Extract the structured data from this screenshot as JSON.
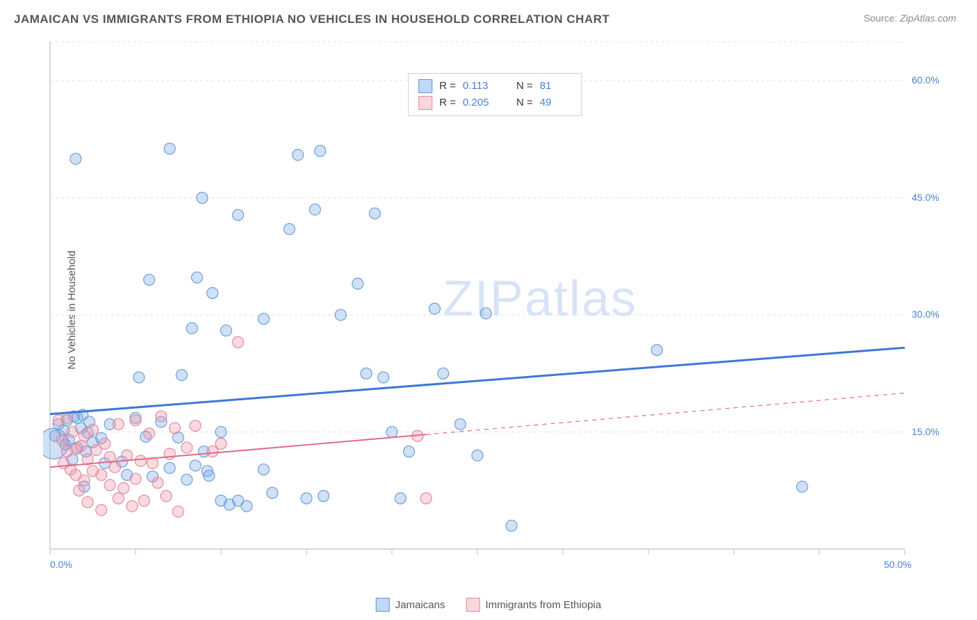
{
  "title": "JAMAICAN VS IMMIGRANTS FROM ETHIOPIA NO VEHICLES IN HOUSEHOLD CORRELATION CHART",
  "source_label": "Source:",
  "source_value": "ZipAtlas.com",
  "y_axis_label": "No Vehicles in Household",
  "watermark_zip": "ZIP",
  "watermark_atlas": "atlas",
  "chart": {
    "type": "scatter",
    "background_color": "#ffffff",
    "grid_color": "#e0e0e0",
    "grid_dash": "4,4",
    "axis_line_color": "#bfbfbf",
    "xlim": [
      0,
      50
    ],
    "ylim": [
      0,
      65
    ],
    "x_ticks": [
      0,
      5,
      10,
      15,
      20,
      25,
      30,
      35,
      40,
      45,
      50
    ],
    "x_tick_labels": {
      "0": "0.0%",
      "50": "50.0%"
    },
    "y_ticks": [
      15,
      30,
      45,
      60
    ],
    "y_tick_labels": {
      "15": "15.0%",
      "30": "30.0%",
      "45": "45.0%",
      "60": "60.0%"
    },
    "series": [
      {
        "name": "Jamaicans",
        "color_fill": "rgba(120,170,230,0.35)",
        "color_stroke": "#6b9fd8",
        "marker_r": 8,
        "R": "0.113",
        "N": "81",
        "trend": {
          "x1": 0,
          "y1": 17.3,
          "x2": 50,
          "y2": 25.8,
          "solid_until_x": 50,
          "color": "#3d78d6",
          "width": 3
        },
        "points": [
          [
            0.3,
            14.5
          ],
          [
            0.5,
            16
          ],
          [
            0.8,
            15.2
          ],
          [
            0.9,
            13.4
          ],
          [
            1.0,
            16.5
          ],
          [
            1.1,
            14.0
          ],
          [
            1.3,
            11.5
          ],
          [
            1.4,
            17.0
          ],
          [
            1.6,
            13.0
          ],
          [
            1.6,
            16.8
          ],
          [
            1.8,
            15.5
          ],
          [
            1.9,
            17.2
          ],
          [
            2.0,
            8.0
          ],
          [
            2.1,
            12.5
          ],
          [
            2.2,
            14.9
          ],
          [
            2.3,
            16.3
          ],
          [
            2.5,
            13.7
          ],
          [
            3.0,
            14.2
          ],
          [
            3.2,
            11.0
          ],
          [
            3.5,
            16.0
          ],
          [
            1.5,
            50.0
          ],
          [
            4.2,
            11.2
          ],
          [
            4.5,
            9.5
          ],
          [
            5.0,
            16.8
          ],
          [
            5.2,
            22.0
          ],
          [
            5.6,
            14.4
          ],
          [
            5.8,
            34.5
          ],
          [
            6.0,
            9.3
          ],
          [
            6.5,
            16.3
          ],
          [
            7.0,
            10.4
          ],
          [
            7.0,
            51.3
          ],
          [
            7.5,
            14.3
          ],
          [
            7.7,
            22.3
          ],
          [
            8.0,
            8.9
          ],
          [
            8.3,
            28.3
          ],
          [
            8.5,
            10.7
          ],
          [
            8.6,
            34.8
          ],
          [
            8.9,
            45.0
          ],
          [
            9.0,
            12.5
          ],
          [
            9.2,
            10.0
          ],
          [
            9.3,
            9.4
          ],
          [
            9.5,
            32.8
          ],
          [
            10.0,
            6.2
          ],
          [
            10.0,
            15.0
          ],
          [
            10.3,
            28.0
          ],
          [
            10.5,
            5.7
          ],
          [
            11.0,
            6.2
          ],
          [
            11.0,
            42.8
          ],
          [
            11.5,
            5.5
          ],
          [
            12.5,
            10.2
          ],
          [
            12.5,
            29.5
          ],
          [
            13.0,
            7.2
          ],
          [
            14.0,
            41.0
          ],
          [
            14.5,
            50.5
          ],
          [
            15.0,
            6.5
          ],
          [
            15.5,
            43.5
          ],
          [
            15.8,
            51.0
          ],
          [
            16.0,
            6.8
          ],
          [
            17.0,
            30.0
          ],
          [
            18.0,
            34.0
          ],
          [
            18.5,
            22.5
          ],
          [
            19.0,
            43.0
          ],
          [
            19.5,
            22.0
          ],
          [
            20.0,
            15.0
          ],
          [
            20.5,
            6.5
          ],
          [
            21.0,
            12.5
          ],
          [
            22.5,
            30.8
          ],
          [
            23.0,
            22.5
          ],
          [
            24.0,
            16.0
          ],
          [
            25.0,
            12.0
          ],
          [
            25.5,
            30.2
          ],
          [
            27.0,
            3.0
          ],
          [
            35.5,
            25.5
          ],
          [
            44.0,
            8.0
          ]
        ],
        "big_points": [
          {
            "x": 0.2,
            "y": 13.5,
            "r": 22
          }
        ]
      },
      {
        "name": "Immigrants from Ethiopia",
        "color_fill": "rgba(240,150,170,0.35)",
        "color_stroke": "#e28aa0",
        "marker_r": 8,
        "R": "0.205",
        "N": "49",
        "trend": {
          "x1": 0,
          "y1": 10.5,
          "x2": 50,
          "y2": 20.0,
          "solid_until_x": 22,
          "color": "#e06a8a",
          "width": 2
        },
        "points": [
          [
            0.5,
            16.5
          ],
          [
            0.7,
            14.0
          ],
          [
            0.8,
            11.0
          ],
          [
            1.0,
            12.5
          ],
          [
            1.0,
            16.8
          ],
          [
            1.2,
            10.2
          ],
          [
            1.3,
            15.0
          ],
          [
            1.5,
            9.5
          ],
          [
            1.5,
            12.8
          ],
          [
            1.7,
            7.5
          ],
          [
            1.8,
            13.2
          ],
          [
            2.0,
            8.8
          ],
          [
            2.0,
            14.5
          ],
          [
            2.2,
            6.0
          ],
          [
            2.2,
            11.5
          ],
          [
            2.5,
            10.0
          ],
          [
            2.5,
            15.3
          ],
          [
            2.7,
            12.7
          ],
          [
            3.0,
            5.0
          ],
          [
            3.0,
            9.5
          ],
          [
            3.2,
            13.5
          ],
          [
            3.5,
            8.2
          ],
          [
            3.5,
            11.8
          ],
          [
            3.8,
            10.5
          ],
          [
            4.0,
            6.5
          ],
          [
            4.0,
            16.0
          ],
          [
            4.3,
            7.8
          ],
          [
            4.5,
            12.0
          ],
          [
            4.8,
            5.5
          ],
          [
            5.0,
            9.0
          ],
          [
            5.0,
            16.5
          ],
          [
            5.3,
            11.3
          ],
          [
            5.5,
            6.2
          ],
          [
            5.8,
            14.8
          ],
          [
            6.0,
            11.0
          ],
          [
            6.3,
            8.5
          ],
          [
            6.5,
            17.0
          ],
          [
            6.8,
            6.8
          ],
          [
            7.0,
            12.2
          ],
          [
            7.3,
            15.5
          ],
          [
            7.5,
            4.8
          ],
          [
            8.0,
            13.0
          ],
          [
            8.5,
            15.8
          ],
          [
            9.5,
            12.5
          ],
          [
            10.0,
            13.5
          ],
          [
            11.0,
            26.5
          ],
          [
            21.5,
            14.5
          ],
          [
            22.0,
            6.5
          ]
        ],
        "big_points": []
      }
    ]
  },
  "legend_box": {
    "r_label": "R  =",
    "n_label": "N  ="
  },
  "bottom_legend": {
    "series1": "Jamaicans",
    "series2": "Immigrants from Ethiopia"
  }
}
